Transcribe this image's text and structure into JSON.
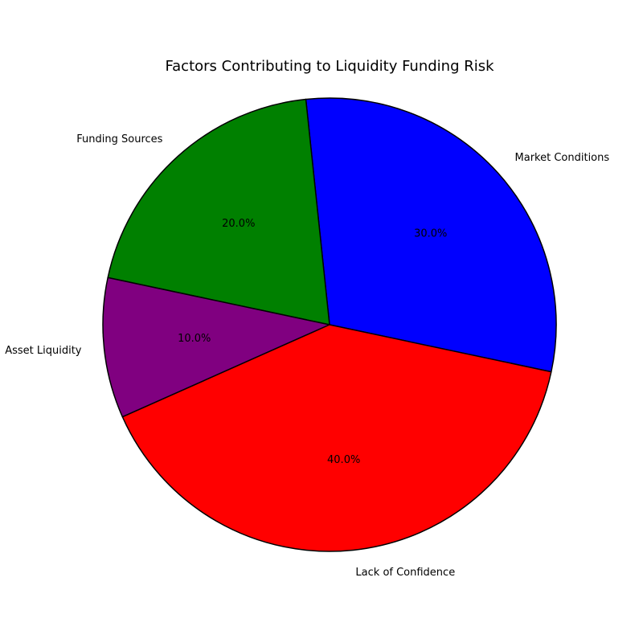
{
  "chart_data": {
    "type": "pie",
    "title": "Factors Contributing to Liquidity Funding Risk",
    "slices": [
      {
        "label": "Market Conditions",
        "value": 30,
        "pct_label": "30.0%",
        "color": "#0000ff"
      },
      {
        "label": "Funding Sources",
        "value": 20,
        "pct_label": "20.0%",
        "color": "#008000"
      },
      {
        "label": "Asset Liquidity",
        "value": 10,
        "pct_label": "10.0%",
        "color": "#800080"
      },
      {
        "label": "Lack of Confidence",
        "value": 40,
        "pct_label": "40.0%",
        "color": "#ff0000"
      }
    ],
    "start_angle_deg": -12,
    "direction": "counterclockwise",
    "edge_color": "#000000",
    "legend": "none"
  }
}
